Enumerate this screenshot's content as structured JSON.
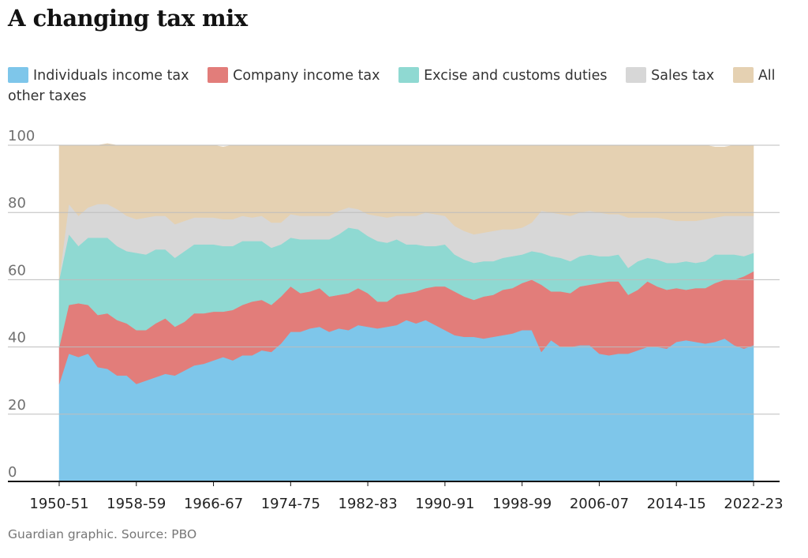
{
  "chart_data": {
    "type": "area",
    "stacked": true,
    "title": "A changing tax mix",
    "source": "Guardian graphic. Source: PBO",
    "ylim": [
      0,
      100
    ],
    "y_ticks": [
      0,
      20,
      40,
      60,
      80,
      100
    ],
    "x_tick_labels": [
      "1950-51",
      "1958-59",
      "1966-67",
      "1974-75",
      "1982-83",
      "1990-91",
      "1998-99",
      "2006-07",
      "2014-15",
      "2022-23"
    ],
    "x_tick_indices": [
      0,
      8,
      16,
      24,
      32,
      40,
      48,
      56,
      64,
      72
    ],
    "x_start_label": "1950-51",
    "x_end_label": "2022-23",
    "series": [
      {
        "name": "Individuals income tax",
        "color": "#7ec6ea",
        "values": [
          29,
          38,
          37,
          38,
          34,
          33.5,
          31.5,
          31.5,
          29,
          30,
          31,
          32,
          31.5,
          33,
          34.5,
          35,
          36,
          37,
          36,
          37.5,
          37.5,
          39,
          38.5,
          41,
          44.5,
          44.5,
          45.5,
          46,
          44.5,
          45.5,
          45,
          46.5,
          46,
          45.5,
          46,
          46.5,
          48,
          47,
          48,
          46.5,
          45,
          43.5,
          43,
          43,
          42.5,
          43,
          43.5,
          44,
          45,
          45,
          38.5,
          42,
          40,
          40,
          40.5,
          40.5,
          38,
          37.5,
          38,
          38,
          39,
          40,
          40,
          39.5,
          41.5,
          42,
          41.5,
          41,
          41.5,
          42.5,
          40.5,
          39.5,
          40.5
        ]
      },
      {
        "name": "Company income tax",
        "color": "#e27d7a",
        "values": [
          11,
          14.5,
          16,
          14.5,
          15.5,
          16.5,
          16.5,
          15.5,
          16,
          15,
          16,
          16.5,
          14.5,
          14.5,
          15.5,
          15,
          14.5,
          13.5,
          15,
          15,
          16,
          15,
          14,
          14,
          13.5,
          11.5,
          11,
          11.5,
          10.5,
          10,
          11,
          11,
          10,
          8,
          7.5,
          9,
          8,
          9.5,
          9.5,
          11.5,
          13,
          13,
          12,
          11,
          12.5,
          12.5,
          13.5,
          13.5,
          14,
          15,
          20,
          14.5,
          16.5,
          16,
          17.5,
          18,
          21,
          22,
          21.5,
          17.5,
          18,
          19.5,
          18,
          17.5,
          16,
          15,
          16,
          16.5,
          17.5,
          17.5,
          19.5,
          21.5,
          22
        ]
      },
      {
        "name": "Excise and customs duties",
        "color": "#8fd9d2",
        "values": [
          20,
          21,
          17,
          20,
          23,
          22.5,
          22,
          21.5,
          23,
          22.5,
          22,
          20.5,
          20.5,
          21,
          20.5,
          20.5,
          20,
          19.5,
          19,
          19,
          18,
          17.5,
          17,
          15.5,
          14.5,
          16,
          15.5,
          14.5,
          17,
          18,
          19.5,
          17.5,
          17,
          18,
          17.5,
          16.5,
          14.5,
          14,
          12.5,
          12,
          12.5,
          11,
          11,
          11,
          10.5,
          10,
          9.5,
          9.5,
          8.5,
          8.5,
          9.5,
          10.5,
          10,
          9.5,
          9,
          9,
          8,
          7.5,
          8,
          8,
          8.5,
          7,
          8,
          8,
          7.5,
          8.5,
          7.5,
          8,
          8.5,
          7.5,
          7.5,
          6,
          5.5
        ]
      },
      {
        "name": "Sales tax",
        "color": "#d7d7d7",
        "values": [
          0,
          9,
          9,
          9,
          10,
          10,
          11,
          10.5,
          10,
          11,
          10,
          10,
          10,
          9,
          8,
          8,
          8,
          8,
          8,
          7.5,
          7,
          7.5,
          7.5,
          6.5,
          7,
          7,
          7,
          7,
          7,
          7,
          6,
          6,
          6.5,
          7.5,
          7.5,
          7,
          8.5,
          8.5,
          10,
          9.5,
          8.5,
          8.5,
          8.5,
          8.5,
          8.5,
          9,
          8.5,
          8,
          8,
          8.5,
          12.5,
          13,
          13,
          13.5,
          13,
          13,
          13,
          12.5,
          12,
          15,
          13,
          12,
          12.5,
          13,
          12.5,
          12,
          12.5,
          12.5,
          11,
          11.5,
          11.5,
          12,
          11
        ]
      },
      {
        "name": "All other taxes",
        "color": "#e5d1b2",
        "values": [
          40,
          17.5,
          21,
          18.5,
          17.5,
          18,
          19,
          21,
          22,
          21.5,
          21,
          21,
          23.5,
          22.5,
          21.5,
          21.5,
          21.5,
          21.5,
          22,
          21,
          21.5,
          21,
          23,
          23,
          20.5,
          21,
          21,
          21,
          21,
          19.5,
          18.5,
          19,
          20.5,
          21,
          21.5,
          21,
          21,
          21,
          20,
          20.5,
          21,
          24,
          25.5,
          26.5,
          26,
          25.5,
          25,
          25,
          24.5,
          23,
          19.5,
          20,
          20.5,
          21,
          20,
          19.5,
          20,
          20.5,
          20.5,
          21.5,
          21.5,
          21.5,
          21.5,
          22,
          22.5,
          22.5,
          22.5,
          22,
          21,
          20.5,
          21,
          21,
          21
        ]
      }
    ]
  }
}
